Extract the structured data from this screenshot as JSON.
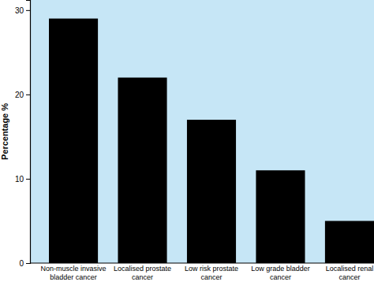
{
  "chart_data": {
    "type": "bar",
    "y_label": "Percentage %",
    "categories": [
      "Non-muscle invasive bladder cancer",
      "Localised prostate cancer",
      "Low risk prostate cancer",
      "Low grade bladder cancer",
      "Localised renal cancer"
    ],
    "values": [
      29,
      22,
      17,
      11,
      5
    ],
    "color": "#000000",
    "ylim": [
      0,
      31.2
    ],
    "yticks": [
      0,
      10,
      20,
      30
    ],
    "grid": false
  }
}
